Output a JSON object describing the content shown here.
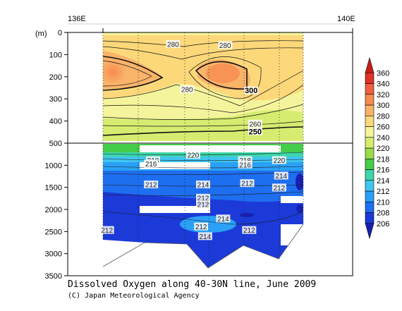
{
  "chart_data": {
    "type": "heatmap",
    "title": "Dissolved Oxygen along 40-30N line, June 2009",
    "credit": "(C) Japan Meteorological Agency",
    "xlabel": "",
    "ylabel": "(m)",
    "x_ticks": [
      "136E",
      "140E"
    ],
    "y_ticks": [
      0,
      100,
      200,
      300,
      400,
      500,
      1000,
      1500,
      2000,
      2500,
      3000,
      3500
    ],
    "y_upper_range": [
      0,
      500
    ],
    "y_lower_range": [
      500,
      3500
    ],
    "colorbar": {
      "levels": [
        206,
        208,
        210,
        212,
        214,
        216,
        218,
        220,
        240,
        260,
        280,
        300,
        320,
        340,
        360
      ],
      "colors": [
        "#1820b0",
        "#1c3ad8",
        "#1e6ef0",
        "#2aa0f6",
        "#40c6ee",
        "#3cd6a8",
        "#44cc4a",
        "#9cdc4c",
        "#d6ec70",
        "#f4f49c",
        "#fcd87a",
        "#fab46a",
        "#f68c50",
        "#ee6040",
        "#e03228",
        "#c81e18"
      ]
    },
    "contour_labels": [
      {
        "text": "280",
        "depth": 55,
        "section": "upper",
        "xi": 0.35
      },
      {
        "text": "280",
        "depth": 60,
        "section": "upper",
        "xi": 0.61
      },
      {
        "text": "280",
        "depth": 260,
        "section": "upper",
        "xi": 0.42
      },
      {
        "text": "300",
        "depth": 265,
        "section": "upper",
        "xi": 0.74,
        "bold": true
      },
      {
        "text": "260",
        "depth": 415,
        "section": "upper",
        "xi": 0.76
      },
      {
        "text": "250",
        "depth": 450,
        "section": "upper",
        "xi": 0.76,
        "bold": true
      },
      {
        "text": "220",
        "depth": 780,
        "section": "lower",
        "xi": 0.45
      },
      {
        "text": "218",
        "depth": 900,
        "section": "lower",
        "xi": 0.25
      },
      {
        "text": "216",
        "depth": 980,
        "section": "lower",
        "xi": 0.24
      },
      {
        "text": "218",
        "depth": 900,
        "section": "lower",
        "xi": 0.71
      },
      {
        "text": "216",
        "depth": 1000,
        "section": "lower",
        "xi": 0.71
      },
      {
        "text": "220",
        "depth": 900,
        "section": "lower",
        "xi": 0.88
      },
      {
        "text": "214",
        "depth": 1250,
        "section": "lower",
        "xi": 0.89
      },
      {
        "text": "212",
        "depth": 1450,
        "section": "lower",
        "xi": 0.24
      },
      {
        "text": "214",
        "depth": 1450,
        "section": "lower",
        "xi": 0.5
      },
      {
        "text": "212",
        "depth": 1420,
        "section": "lower",
        "xi": 0.72
      },
      {
        "text": "212",
        "depth": 1520,
        "section": "lower",
        "xi": 0.88
      },
      {
        "text": "212",
        "depth": 1750,
        "section": "lower",
        "xi": 0.5
      },
      {
        "text": "212",
        "depth": 1900,
        "section": "lower",
        "xi": 0.5
      },
      {
        "text": "214",
        "depth": 2220,
        "section": "lower",
        "xi": 0.6
      },
      {
        "text": "212",
        "depth": 2400,
        "section": "lower",
        "xi": 0.49
      },
      {
        "text": "212",
        "depth": 2480,
        "section": "lower",
        "xi": 0.73
      },
      {
        "text": "212",
        "depth": 2480,
        "section": "lower",
        "xi": 0.02
      },
      {
        "text": "214",
        "depth": 2620,
        "section": "lower",
        "xi": 0.51
      }
    ]
  }
}
